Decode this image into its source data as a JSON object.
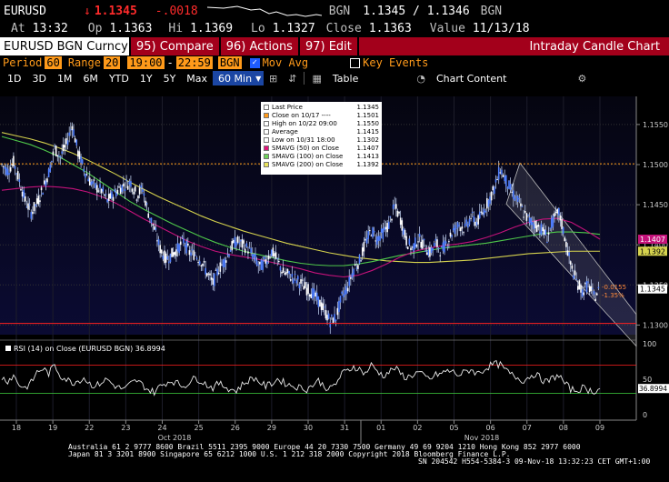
{
  "quote": {
    "ticker": "EURUSD",
    "arrow": "↓",
    "last": "1.1345",
    "change": "-.0018",
    "source": "BGN",
    "bid_ask": "1.1345 / 1.1346",
    "source2": "BGN",
    "at_label": "At",
    "time": "13:32",
    "op_label": "Op",
    "open": "1.1363",
    "hi_label": "Hi",
    "high": "1.1369",
    "lo_label": "Lo",
    "low": "1.1327",
    "close_label": "Close",
    "close": "1.1363",
    "value_label": "Value",
    "value_date": "11/13/18"
  },
  "menu": {
    "security": "EURUSD BGN Curncy",
    "compare": "95) Compare",
    "actions": "96) Actions",
    "edit": "97) Edit",
    "title": "Intraday Candle Chart"
  },
  "settings": {
    "period_label": "Period",
    "period": "60",
    "range_label": "Range",
    "range": "20",
    "start": "19:00",
    "dash": "-",
    "end": "22:59",
    "source": "BGN",
    "mov_avg": "Mov Avg",
    "key_events": "Key Events"
  },
  "toolbar": {
    "ranges": [
      "1D",
      "3D",
      "1M",
      "6M",
      "YTD",
      "1Y",
      "5Y",
      "Max"
    ],
    "interval": "60 Min",
    "table": "Table",
    "chart_content": "Chart Content"
  },
  "legend": {
    "rows": [
      {
        "label": "Last Price",
        "value": "1.1345",
        "color": "#ffffff"
      },
      {
        "label": "Close on 10/17 ----",
        "value": "1.1501",
        "color": "#ff9a1a"
      },
      {
        "label": "High on 10/22 09:00",
        "value": "1.1550",
        "color": "#ffffff"
      },
      {
        "label": "Average",
        "value": "1.1415",
        "color": "#ffffff"
      },
      {
        "label": "Low on 10/31 18:00",
        "value": "1.1302",
        "color": "#ffffff"
      },
      {
        "label": "SMAVG (50)  on Close",
        "value": "1.1407",
        "color": "#e0147a"
      },
      {
        "label": "SMAVG (100)  on Close",
        "value": "1.1413",
        "color": "#6dd35a"
      },
      {
        "label": "SMAVG (200)  on Close",
        "value": "1.1392",
        "color": "#e9e35c"
      }
    ]
  },
  "price_axis": [
    "1.1550",
    "1.1500",
    "1.1450",
    "1.1400",
    "1.1350",
    "1.1300"
  ],
  "axis_tags": {
    "sma50": "1.1407",
    "sma200": "1.1392",
    "last": "1.1345",
    "chg1": "-0.0155",
    "chg2": "-1.35%"
  },
  "rsi": {
    "label": "RSI (14)  on Close (EURUSD BGN) 36.8994",
    "value": "36.8994",
    "axis": [
      "100",
      "50",
      "0"
    ]
  },
  "x_axis": {
    "days": [
      "18",
      "19",
      "22",
      "23",
      "24",
      "25",
      "26",
      "29",
      "30",
      "31",
      "01",
      "02",
      "05",
      "06",
      "07",
      "08",
      "09"
    ],
    "months": [
      "Oct 2018",
      "Nov 2018"
    ]
  },
  "footer": {
    "line1": "Australia 61 2 9777 8600 Brazil 5511 2395 9000 Europe 44 20 7330 7500 Germany 49 69 9204 1210 Hong Kong 852 2977 6000",
    "line2": "Japan 81 3 3201 8900          Singapore 65 6212 1000          U.S. 1 212 318 2000          Copyright 2018 Bloomberg Finance L.P.",
    "line3": "SN 204542 H554-5384-3 09-Nov-18 13:32:23 CET  GMT+1:00"
  },
  "chart_data": {
    "type": "candlestick",
    "ylim": [
      1.1288,
      1.1585
    ],
    "reference_lines": {
      "close_10_17": 1.1501,
      "low": 1.1302
    },
    "price_path": [
      1.15,
      1.1492,
      1.1503,
      1.148,
      1.1455,
      1.144,
      1.1452,
      1.147,
      1.149,
      1.152,
      1.151,
      1.1525,
      1.155,
      1.1515,
      1.1495,
      1.148,
      1.1472,
      1.1468,
      1.1455,
      1.1462,
      1.147,
      1.1475,
      1.1478,
      1.1462,
      1.147,
      1.144,
      1.142,
      1.1395,
      1.1382,
      1.1388,
      1.1395,
      1.1405,
      1.139,
      1.1388,
      1.138,
      1.1365,
      1.1352,
      1.137,
      1.138,
      1.1395,
      1.1405,
      1.14,
      1.1395,
      1.1385,
      1.1372,
      1.138,
      1.1392,
      1.138,
      1.1365,
      1.1362,
      1.1358,
      1.1352,
      1.1345,
      1.134,
      1.133,
      1.1318,
      1.1305,
      1.131,
      1.1335,
      1.1348,
      1.137,
      1.138,
      1.1402,
      1.1418,
      1.1408,
      1.1415,
      1.1425,
      1.1448,
      1.1432,
      1.1405,
      1.1395,
      1.1408,
      1.14,
      1.139,
      1.1402,
      1.1392,
      1.1405,
      1.1418,
      1.1425,
      1.142,
      1.1435,
      1.1428,
      1.144,
      1.1455,
      1.147,
      1.1495,
      1.148,
      1.1465,
      1.1455,
      1.144,
      1.143,
      1.1425,
      1.142,
      1.141,
      1.143,
      1.144,
      1.141,
      1.1375,
      1.1355,
      1.1342,
      1.135,
      1.1335,
      1.1345
    ],
    "sma50": [
      1.1468,
      1.147,
      1.1472,
      1.1473,
      1.1472,
      1.147,
      1.1466,
      1.146,
      1.1452,
      1.1442,
      1.1432,
      1.1423,
      1.1414,
      1.1405,
      1.1398,
      1.1392,
      1.1388,
      1.1385,
      1.1382,
      1.1378,
      1.1374,
      1.137,
      1.1365,
      1.1362,
      1.136,
      1.1362,
      1.1368,
      1.1376,
      1.1385,
      1.1392,
      1.1396,
      1.1399,
      1.1401,
      1.1404,
      1.1409,
      1.1415,
      1.1422,
      1.1428,
      1.1432,
      1.1433,
      1.1428,
      1.1418,
      1.1407
    ],
    "sma100": [
      1.1535,
      1.153,
      1.1525,
      1.1518,
      1.151,
      1.15,
      1.149,
      1.1478,
      1.1466,
      1.1454,
      1.1444,
      1.1435,
      1.1426,
      1.1418,
      1.141,
      1.1403,
      1.1397,
      1.1392,
      1.1388,
      1.1384,
      1.138,
      1.1377,
      1.1375,
      1.1374,
      1.1374,
      1.1376,
      1.1379,
      1.1383,
      1.1387,
      1.139,
      1.1393,
      1.1396,
      1.1398,
      1.14,
      1.1402,
      1.1405,
      1.1408,
      1.1411,
      1.1414,
      1.1416,
      1.1416,
      1.1415,
      1.1413
    ],
    "sma200": [
      1.154,
      1.1536,
      1.1532,
      1.1527,
      1.1521,
      1.1514,
      1.1506,
      1.1497,
      1.1488,
      1.1478,
      1.1469,
      1.146,
      1.1452,
      1.1444,
      1.1436,
      1.1429,
      1.1423,
      1.1417,
      1.1412,
      1.1407,
      1.1402,
      1.1398,
      1.1394,
      1.139,
      1.1387,
      1.1384,
      1.1382,
      1.138,
      1.1379,
      1.1378,
      1.1378,
      1.1379,
      1.138,
      1.1381,
      1.1383,
      1.1385,
      1.1387,
      1.1389,
      1.139,
      1.1391,
      1.1392,
      1.1392,
      1.1392
    ],
    "rsi_path": [
      52,
      48,
      55,
      42,
      38,
      45,
      60,
      65,
      58,
      70,
      55,
      50,
      45,
      48,
      52,
      44,
      40,
      46,
      50,
      42,
      38,
      36,
      44,
      48,
      42,
      35,
      32,
      40,
      45,
      48,
      44,
      40,
      46,
      52,
      48,
      42,
      38,
      44,
      40,
      36,
      34,
      42,
      48,
      52,
      46,
      40,
      44,
      50,
      46,
      42,
      40,
      38,
      36,
      42,
      48,
      40,
      36,
      44,
      58,
      62,
      68,
      64,
      58,
      70,
      62,
      55,
      60,
      66,
      58,
      52,
      56,
      60,
      54,
      50,
      56,
      58,
      62,
      60,
      56,
      60,
      64,
      58,
      62,
      68,
      72,
      70,
      62,
      56,
      52,
      48,
      54,
      58,
      50,
      46,
      52,
      56,
      44,
      36,
      34,
      38,
      35,
      33,
      37
    ]
  }
}
